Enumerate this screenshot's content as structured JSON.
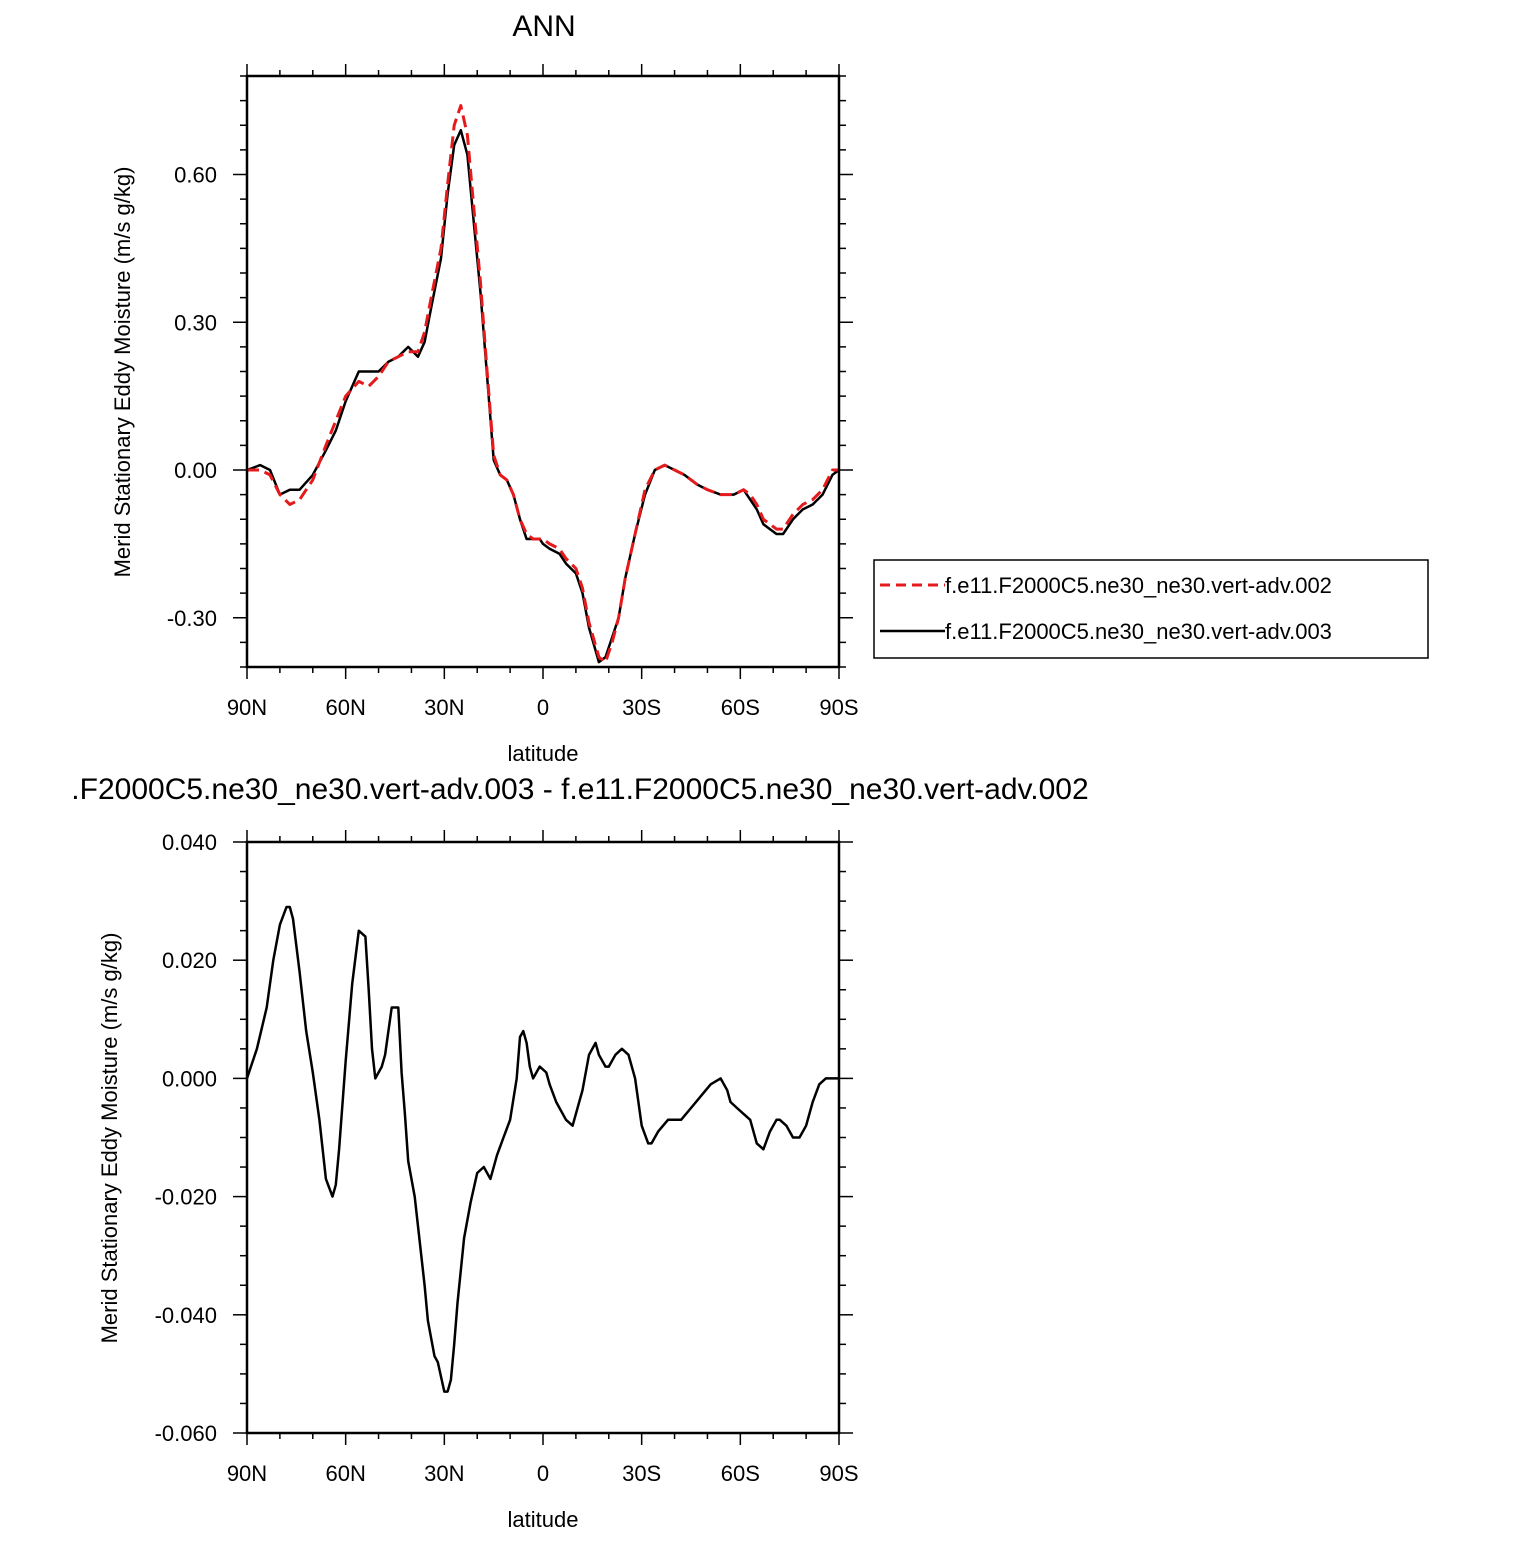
{
  "chart_data": [
    {
      "type": "line",
      "title": "ANN",
      "xlabel": "latitude",
      "ylabel": "Merid Stationary Eddy Moisture (m/s g/kg)",
      "xlim": [
        90,
        -90
      ],
      "ylim": [
        -0.4,
        0.8
      ],
      "x_ticks": [
        90,
        60,
        30,
        0,
        -30,
        -60,
        -90
      ],
      "x_tick_labels": [
        "90N",
        "60N",
        "30N",
        "0",
        "30S",
        "60S",
        "90S"
      ],
      "y_ticks": [
        -0.3,
        0.0,
        0.3,
        0.6
      ],
      "y_tick_labels": [
        "-0.30",
        "0.00",
        "0.30",
        "0.60"
      ],
      "legend_position": "right",
      "series": [
        {
          "name": "f.e11.F2000C5.ne30_ne30.vert-adv.002",
          "color": "#e41a1c",
          "dash": "dashed",
          "x": [
            90,
            86,
            83,
            80,
            77,
            74,
            70,
            66,
            63,
            60,
            56,
            53,
            50,
            47,
            44,
            41,
            38,
            36,
            34,
            31,
            29,
            27,
            25,
            23,
            21,
            19,
            17,
            15,
            13,
            11,
            9,
            7,
            5,
            3,
            1,
            0,
            -2,
            -5,
            -7,
            -10,
            -12,
            -14,
            -17,
            -19,
            -21,
            -23,
            -25,
            -28,
            -31,
            -34,
            -37,
            -40,
            -43,
            -47,
            -50,
            -54,
            -58,
            -61,
            -63,
            -65,
            -67,
            -69,
            -71,
            -73,
            -76,
            -79,
            -82,
            -85,
            -88,
            -90
          ],
          "values": [
            0.0,
            0.0,
            -0.01,
            -0.05,
            -0.07,
            -0.06,
            -0.02,
            0.05,
            0.1,
            0.15,
            0.18,
            0.17,
            0.19,
            0.22,
            0.23,
            0.24,
            0.24,
            0.28,
            0.35,
            0.45,
            0.58,
            0.7,
            0.74,
            0.68,
            0.53,
            0.38,
            0.2,
            0.03,
            -0.01,
            -0.02,
            -0.05,
            -0.1,
            -0.13,
            -0.14,
            -0.14,
            -0.14,
            -0.15,
            -0.16,
            -0.18,
            -0.2,
            -0.24,
            -0.31,
            -0.38,
            -0.39,
            -0.35,
            -0.3,
            -0.22,
            -0.13,
            -0.04,
            0.0,
            0.01,
            0.0,
            -0.01,
            -0.03,
            -0.04,
            -0.05,
            -0.05,
            -0.04,
            -0.05,
            -0.07,
            -0.1,
            -0.11,
            -0.12,
            -0.12,
            -0.09,
            -0.07,
            -0.06,
            -0.04,
            0.0,
            0.0
          ]
        },
        {
          "name": "f.e11.F2000C5.ne30_ne30.vert-adv.003",
          "color": "#000000",
          "dash": "solid",
          "x": [
            90,
            86,
            83,
            80,
            77,
            74,
            70,
            66,
            63,
            60,
            56,
            53,
            50,
            47,
            44,
            41,
            38,
            36,
            34,
            31,
            29,
            27,
            25,
            23,
            21,
            19,
            17,
            15,
            13,
            11,
            9,
            7,
            5,
            3,
            1,
            0,
            -2,
            -5,
            -7,
            -10,
            -12,
            -14,
            -17,
            -19,
            -21,
            -23,
            -25,
            -28,
            -31,
            -34,
            -37,
            -40,
            -43,
            -47,
            -50,
            -54,
            -58,
            -61,
            -63,
            -65,
            -67,
            -69,
            -71,
            -73,
            -76,
            -79,
            -82,
            -85,
            -88,
            -90
          ],
          "values": [
            0.0,
            0.01,
            0.0,
            -0.05,
            -0.04,
            -0.04,
            -0.01,
            0.04,
            0.08,
            0.14,
            0.2,
            0.2,
            0.2,
            0.22,
            0.23,
            0.25,
            0.23,
            0.26,
            0.33,
            0.43,
            0.56,
            0.66,
            0.69,
            0.64,
            0.5,
            0.36,
            0.19,
            0.02,
            -0.01,
            -0.02,
            -0.05,
            -0.1,
            -0.14,
            -0.14,
            -0.14,
            -0.15,
            -0.16,
            -0.17,
            -0.19,
            -0.21,
            -0.25,
            -0.32,
            -0.39,
            -0.38,
            -0.34,
            -0.3,
            -0.22,
            -0.13,
            -0.05,
            0.0,
            0.01,
            0.0,
            -0.01,
            -0.03,
            -0.04,
            -0.05,
            -0.05,
            -0.04,
            -0.06,
            -0.08,
            -0.11,
            -0.12,
            -0.13,
            -0.13,
            -0.1,
            -0.08,
            -0.07,
            -0.05,
            -0.01,
            0.0
          ]
        }
      ]
    },
    {
      "type": "line",
      "title": ".F2000C5.ne30_ne30.vert-adv.003 - f.e11.F2000C5.ne30_ne30.vert-adv.002",
      "xlabel": "latitude",
      "ylabel": "Merid Stationary Eddy Moisture (m/s g/kg)",
      "xlim": [
        90,
        -90
      ],
      "ylim": [
        -0.06,
        0.04
      ],
      "x_ticks": [
        90,
        60,
        30,
        0,
        -30,
        -60,
        -90
      ],
      "x_tick_labels": [
        "90N",
        "60N",
        "30N",
        "0",
        "30S",
        "60S",
        "90S"
      ],
      "y_ticks": [
        -0.06,
        -0.04,
        -0.02,
        0.0,
        0.02,
        0.04
      ],
      "y_tick_labels": [
        "-0.060",
        "-0.040",
        "-0.020",
        "0.000",
        "0.020",
        "0.040"
      ],
      "series": [
        {
          "color": "#000000",
          "dash": "solid",
          "x": [
            90,
            87,
            84,
            82,
            80,
            78,
            77,
            76,
            74,
            72,
            70,
            68,
            66,
            64,
            63,
            62,
            60,
            58,
            56,
            54,
            53,
            52,
            51,
            49,
            48,
            46,
            44,
            43,
            42,
            41,
            39,
            38,
            36,
            35,
            33,
            32,
            30,
            29,
            28,
            27,
            26,
            24,
            22,
            20,
            18,
            16,
            14,
            12,
            10,
            8,
            7,
            6,
            5,
            4,
            3,
            1,
            -1,
            -2,
            -4,
            -7,
            -9,
            -12,
            -14,
            -16,
            -17,
            -19,
            -20,
            -22,
            -24,
            -26,
            -28,
            -30,
            -32,
            -33,
            -35,
            -38,
            -40,
            -42,
            -45,
            -48,
            -51,
            -54,
            -56,
            -57,
            -59,
            -61,
            -63,
            -65,
            -67,
            -69,
            -71,
            -72,
            -74,
            -76,
            -78,
            -80,
            -82,
            -84,
            -86,
            -88,
            -90
          ],
          "values": [
            0.0,
            0.005,
            0.012,
            0.02,
            0.026,
            0.029,
            0.029,
            0.027,
            0.018,
            0.008,
            0.001,
            -0.007,
            -0.017,
            -0.02,
            -0.018,
            -0.012,
            0.003,
            0.016,
            0.025,
            0.024,
            0.015,
            0.005,
            0.0,
            0.002,
            0.004,
            0.012,
            0.012,
            0.001,
            -0.006,
            -0.014,
            -0.02,
            -0.025,
            -0.035,
            -0.041,
            -0.047,
            -0.048,
            -0.053,
            -0.053,
            -0.051,
            -0.045,
            -0.038,
            -0.027,
            -0.021,
            -0.016,
            -0.015,
            -0.017,
            -0.013,
            -0.01,
            -0.007,
            0.0,
            0.007,
            0.008,
            0.006,
            0.002,
            0.0,
            0.002,
            0.001,
            -0.001,
            -0.004,
            -0.007,
            -0.008,
            -0.002,
            0.004,
            0.006,
            0.004,
            0.002,
            0.002,
            0.004,
            0.005,
            0.004,
            0.0,
            -0.008,
            -0.011,
            -0.011,
            -0.009,
            -0.007,
            -0.007,
            -0.007,
            -0.005,
            -0.003,
            -0.001,
            0.0,
            -0.002,
            -0.004,
            -0.005,
            -0.006,
            -0.007,
            -0.011,
            -0.012,
            -0.009,
            -0.007,
            -0.007,
            -0.008,
            -0.01,
            -0.01,
            -0.008,
            -0.004,
            -0.001,
            0.0,
            0.0,
            0.0
          ]
        }
      ]
    }
  ]
}
